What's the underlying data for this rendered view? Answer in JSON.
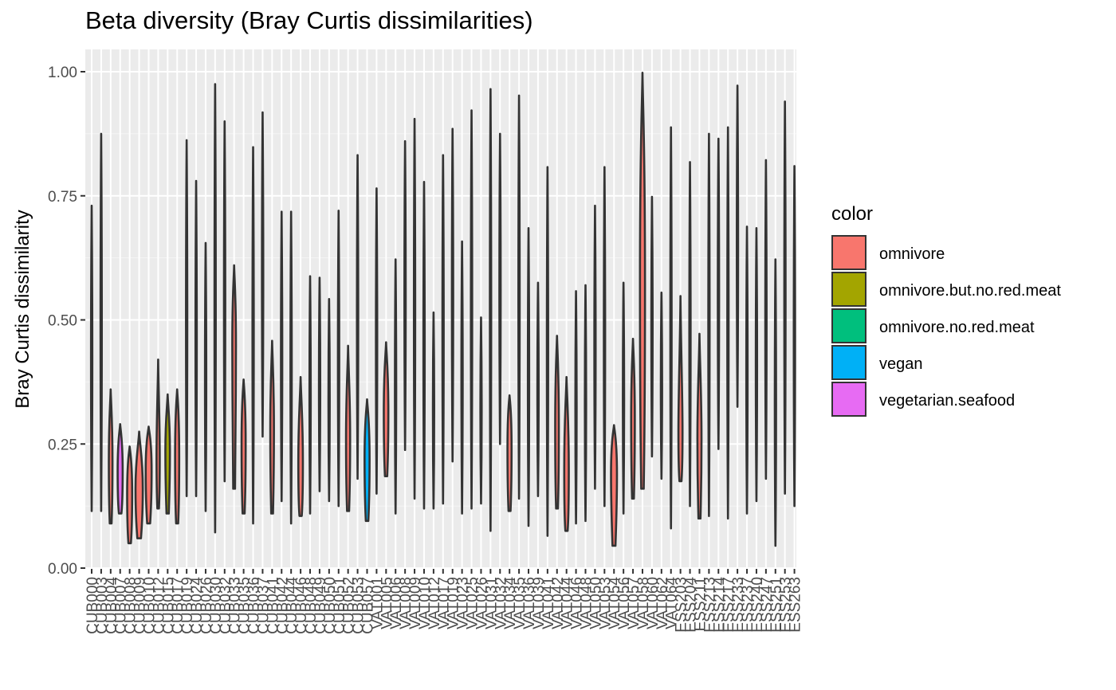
{
  "chart_data": {
    "type": "violin",
    "title": "Beta diversity (Bray Curtis dissimilarities)",
    "xlabel": "",
    "ylabel": "Bray Curtis dissimilarity",
    "ylim": [
      0,
      1
    ],
    "yticks": [
      "0.00",
      "0.25",
      "0.50",
      "0.75",
      "1.00"
    ],
    "grid": true,
    "legend_placement": "right",
    "legend": {
      "title": "color",
      "entries": [
        {
          "label": "omnivore",
          "color": "#F8766D"
        },
        {
          "label": "omnivore.but.no.red.meat",
          "color": "#A3A500"
        },
        {
          "label": "omnivore.no.red.meat",
          "color": "#00BF7D"
        },
        {
          "label": "vegan",
          "color": "#00B0F6"
        },
        {
          "label": "vegetarian.seafood",
          "color": "#E76BF3"
        }
      ]
    },
    "categories": [
      "CUB000",
      "CUB003",
      "CUB004",
      "CUB007",
      "CUB008",
      "CUB009",
      "CUB010",
      "CUB012",
      "CUB015",
      "CUB017",
      "CUB019",
      "CUB024",
      "CUB026",
      "CUB030",
      "CUB032",
      "CUB033",
      "CUB035",
      "CUB036",
      "CUB037",
      "CUB041",
      "CUB042",
      "CUB044",
      "CUB046",
      "CUB048",
      "CUB049",
      "CUB050",
      "CUB051",
      "CUB052",
      "CUB053",
      "CUB057",
      "VAT001",
      "VAT005",
      "VAT006",
      "VAT008",
      "VAT009",
      "VAT010",
      "VAT012",
      "VAT017",
      "VAT019",
      "VAT023",
      "VAT025",
      "VAT026",
      "VAT031",
      "VAT032",
      "VAT034",
      "VAT035",
      "VAT036",
      "VAT039",
      "VAT041",
      "VAT042",
      "VAT044",
      "VAT046",
      "VAT048",
      "VAT050",
      "VAT053",
      "VAT054",
      "VAT056",
      "VAT057",
      "VAT058",
      "VAT060",
      "VAT062",
      "VAT064",
      "ESS203",
      "ESS204",
      "ESS211",
      "ESS213",
      "ESS214",
      "ESS217",
      "ESS233",
      "ESS237",
      "ESS240",
      "ESS247",
      "ESS251",
      "ESS253",
      "ESS263"
    ],
    "series": [
      {
        "group": "omnivore",
        "min": 0.115,
        "max": 0.73,
        "q1": 0.2,
        "q3": 0.6
      },
      {
        "group": "omnivore",
        "min": 0.115,
        "max": 0.875,
        "q1": 0.25,
        "q3": 0.7
      },
      {
        "group": "omnivore",
        "min": 0.09,
        "max": 0.36,
        "q1": 0.13,
        "q3": 0.3,
        "widthFrac": 0.4
      },
      {
        "group": "vegetarian.seafood",
        "min": 0.11,
        "max": 0.29,
        "q1": 0.13,
        "q3": 0.26,
        "widthFrac": 0.55
      },
      {
        "group": "omnivore",
        "min": 0.05,
        "max": 0.245,
        "q1": 0.08,
        "q3": 0.22,
        "widthFrac": 0.55
      },
      {
        "group": "omnivore",
        "min": 0.06,
        "max": 0.275,
        "q1": 0.1,
        "q3": 0.22,
        "widthFrac": 0.8
      },
      {
        "group": "omnivore",
        "min": 0.09,
        "max": 0.285,
        "q1": 0.13,
        "q3": 0.26,
        "widthFrac": 0.65
      },
      {
        "group": "omnivore",
        "min": 0.12,
        "max": 0.42,
        "q1": 0.15,
        "q3": 0.3,
        "widthFrac": 0.35
      },
      {
        "group": "omnivore.but.no.red.meat",
        "min": 0.11,
        "max": 0.35,
        "q1": 0.17,
        "q3": 0.3,
        "widthFrac": 0.5
      },
      {
        "group": "omnivore",
        "min": 0.09,
        "max": 0.36,
        "q1": 0.13,
        "q3": 0.32,
        "widthFrac": 0.45
      },
      {
        "group": "omnivore",
        "min": 0.145,
        "max": 0.862,
        "q1": 0.25,
        "q3": 0.7
      },
      {
        "group": "omnivore",
        "min": 0.145,
        "max": 0.78,
        "q1": 0.25,
        "q3": 0.65
      },
      {
        "group": "omnivore",
        "min": 0.115,
        "max": 0.655,
        "q1": 0.2,
        "q3": 0.55
      },
      {
        "group": "omnivore",
        "min": 0.072,
        "max": 0.975,
        "q1": 0.2,
        "q3": 0.8
      },
      {
        "group": "omnivore",
        "min": 0.175,
        "max": 0.9,
        "q1": 0.3,
        "q3": 0.75
      },
      {
        "group": "omnivore",
        "min": 0.16,
        "max": 0.61,
        "q1": 0.35,
        "q3": 0.55,
        "widthFrac": 0.4
      },
      {
        "group": "omnivore",
        "min": 0.11,
        "max": 0.38,
        "q1": 0.16,
        "q3": 0.34,
        "widthFrac": 0.45
      },
      {
        "group": "omnivore",
        "min": 0.09,
        "max": 0.848,
        "q1": 0.2,
        "q3": 0.7
      },
      {
        "group": "omnivore",
        "min": 0.265,
        "max": 0.918,
        "q1": 0.35,
        "q3": 0.8
      },
      {
        "group": "omnivore",
        "min": 0.11,
        "max": 0.458,
        "q1": 0.18,
        "q3": 0.38,
        "widthFrac": 0.4
      },
      {
        "group": "omnivore",
        "min": 0.135,
        "max": 0.718,
        "q1": 0.2,
        "q3": 0.6
      },
      {
        "group": "omnivore",
        "min": 0.09,
        "max": 0.718,
        "q1": 0.15,
        "q3": 0.6
      },
      {
        "group": "omnivore",
        "min": 0.105,
        "max": 0.385,
        "q1": 0.13,
        "q3": 0.3,
        "widthFrac": 0.5
      },
      {
        "group": "omnivore",
        "min": 0.11,
        "max": 0.588,
        "q1": 0.16,
        "q3": 0.5
      },
      {
        "group": "omnivore",
        "min": 0.155,
        "max": 0.585,
        "q1": 0.2,
        "q3": 0.5
      },
      {
        "group": "omnivore",
        "min": 0.135,
        "max": 0.542,
        "q1": 0.2,
        "q3": 0.45
      },
      {
        "group": "omnivore",
        "min": 0.125,
        "max": 0.72,
        "q1": 0.2,
        "q3": 0.6
      },
      {
        "group": "omnivore",
        "min": 0.115,
        "max": 0.448,
        "q1": 0.17,
        "q3": 0.35,
        "widthFrac": 0.45
      },
      {
        "group": "omnivore",
        "min": 0.18,
        "max": 0.832,
        "q1": 0.3,
        "q3": 0.7
      },
      {
        "group": "vegan",
        "min": 0.095,
        "max": 0.34,
        "q1": 0.14,
        "q3": 0.3,
        "widthFrac": 0.55
      },
      {
        "group": "omnivore",
        "min": 0.15,
        "max": 0.765,
        "q1": 0.22,
        "q3": 0.6
      },
      {
        "group": "omnivore",
        "min": 0.185,
        "max": 0.455,
        "q1": 0.23,
        "q3": 0.4,
        "widthFrac": 0.5
      },
      {
        "group": "omnivore",
        "min": 0.11,
        "max": 0.622,
        "q1": 0.2,
        "q3": 0.5
      },
      {
        "group": "omnivore",
        "min": 0.238,
        "max": 0.86,
        "q1": 0.3,
        "q3": 0.7
      },
      {
        "group": "omnivore",
        "min": 0.14,
        "max": 0.905,
        "q1": 0.25,
        "q3": 0.75
      },
      {
        "group": "omnivore",
        "min": 0.12,
        "max": 0.778,
        "q1": 0.2,
        "q3": 0.6
      },
      {
        "group": "omnivore",
        "min": 0.12,
        "max": 0.515,
        "q1": 0.2,
        "q3": 0.45
      },
      {
        "group": "omnivore",
        "min": 0.13,
        "max": 0.832,
        "q1": 0.2,
        "q3": 0.7
      },
      {
        "group": "omnivore",
        "min": 0.215,
        "max": 0.885,
        "q1": 0.3,
        "q3": 0.75
      },
      {
        "group": "omnivore",
        "min": 0.11,
        "max": 0.658,
        "q1": 0.2,
        "q3": 0.55
      },
      {
        "group": "omnivore",
        "min": 0.12,
        "max": 0.922,
        "q1": 0.2,
        "q3": 0.75
      },
      {
        "group": "omnivore",
        "min": 0.13,
        "max": 0.505,
        "q1": 0.2,
        "q3": 0.45
      },
      {
        "group": "omnivore",
        "min": 0.075,
        "max": 0.965,
        "q1": 0.2,
        "q3": 0.8
      },
      {
        "group": "omnivore",
        "min": 0.25,
        "max": 0.875,
        "q1": 0.35,
        "q3": 0.75
      },
      {
        "group": "omnivore",
        "min": 0.115,
        "max": 0.348,
        "q1": 0.16,
        "q3": 0.32,
        "widthFrac": 0.45
      },
      {
        "group": "omnivore",
        "min": 0.14,
        "max": 0.952,
        "q1": 0.2,
        "q3": 0.8
      },
      {
        "group": "omnivore",
        "min": 0.085,
        "max": 0.685,
        "q1": 0.15,
        "q3": 0.55
      },
      {
        "group": "omnivore",
        "min": 0.145,
        "max": 0.575,
        "q1": 0.2,
        "q3": 0.5
      },
      {
        "group": "omnivore",
        "min": 0.065,
        "max": 0.808,
        "q1": 0.15,
        "q3": 0.65
      },
      {
        "group": "omnivore",
        "min": 0.12,
        "max": 0.468,
        "q1": 0.17,
        "q3": 0.4,
        "widthFrac": 0.4
      },
      {
        "group": "omnivore",
        "min": 0.075,
        "max": 0.385,
        "q1": 0.1,
        "q3": 0.3,
        "widthFrac": 0.5
      },
      {
        "group": "omnivore",
        "min": 0.09,
        "max": 0.558,
        "q1": 0.15,
        "q3": 0.45
      },
      {
        "group": "omnivore",
        "min": 0.095,
        "max": 0.57,
        "q1": 0.15,
        "q3": 0.45
      },
      {
        "group": "omnivore",
        "min": 0.16,
        "max": 0.73,
        "q1": 0.22,
        "q3": 0.6
      },
      {
        "group": "omnivore",
        "min": 0.125,
        "max": 0.808,
        "q1": 0.2,
        "q3": 0.65
      },
      {
        "group": "omnivore",
        "min": 0.045,
        "max": 0.288,
        "q1": 0.12,
        "q3": 0.26,
        "widthFrac": 0.65
      },
      {
        "group": "omnivore",
        "min": 0.11,
        "max": 0.575,
        "q1": 0.17,
        "q3": 0.45
      },
      {
        "group": "omnivore",
        "min": 0.14,
        "max": 0.462,
        "q1": 0.2,
        "q3": 0.4,
        "widthFrac": 0.4
      },
      {
        "group": "omnivore",
        "min": 0.16,
        "max": 0.998,
        "q1": 0.3,
        "q3": 0.85,
        "widthFrac": 0.55
      },
      {
        "group": "omnivore",
        "min": 0.225,
        "max": 0.748,
        "q1": 0.3,
        "q3": 0.6
      },
      {
        "group": "omnivore",
        "min": 0.18,
        "max": 0.555,
        "q1": 0.25,
        "q3": 0.45
      },
      {
        "group": "omnivore",
        "min": 0.08,
        "max": 0.888,
        "q1": 0.2,
        "q3": 0.7
      },
      {
        "group": "omnivore",
        "min": 0.175,
        "max": 0.548,
        "q1": 0.2,
        "q3": 0.35,
        "widthFrac": 0.45
      },
      {
        "group": "omnivore",
        "min": 0.125,
        "max": 0.818,
        "q1": 0.2,
        "q3": 0.65
      },
      {
        "group": "omnivore",
        "min": 0.1,
        "max": 0.472,
        "q1": 0.17,
        "q3": 0.35,
        "widthFrac": 0.45
      },
      {
        "group": "omnivore",
        "min": 0.105,
        "max": 0.875,
        "q1": 0.2,
        "q3": 0.7
      },
      {
        "group": "omnivore",
        "min": 0.24,
        "max": 0.865,
        "q1": 0.3,
        "q3": 0.75
      },
      {
        "group": "omnivore",
        "min": 0.1,
        "max": 0.888,
        "q1": 0.2,
        "q3": 0.7
      },
      {
        "group": "omnivore",
        "min": 0.325,
        "max": 0.972,
        "q1": 0.4,
        "q3": 0.85
      },
      {
        "group": "omnivore",
        "min": 0.11,
        "max": 0.688,
        "q1": 0.2,
        "q3": 0.55
      },
      {
        "group": "omnivore",
        "min": 0.135,
        "max": 0.685,
        "q1": 0.2,
        "q3": 0.55
      },
      {
        "group": "omnivore",
        "min": 0.18,
        "max": 0.822,
        "q1": 0.25,
        "q3": 0.7
      },
      {
        "group": "omnivore",
        "min": 0.045,
        "max": 0.622,
        "q1": 0.15,
        "q3": 0.5
      },
      {
        "group": "omnivore",
        "min": 0.15,
        "max": 0.94,
        "q1": 0.25,
        "q3": 0.8
      },
      {
        "group": "omnivore",
        "min": 0.125,
        "max": 0.81,
        "q1": 0.2,
        "q3": 0.65
      }
    ]
  }
}
